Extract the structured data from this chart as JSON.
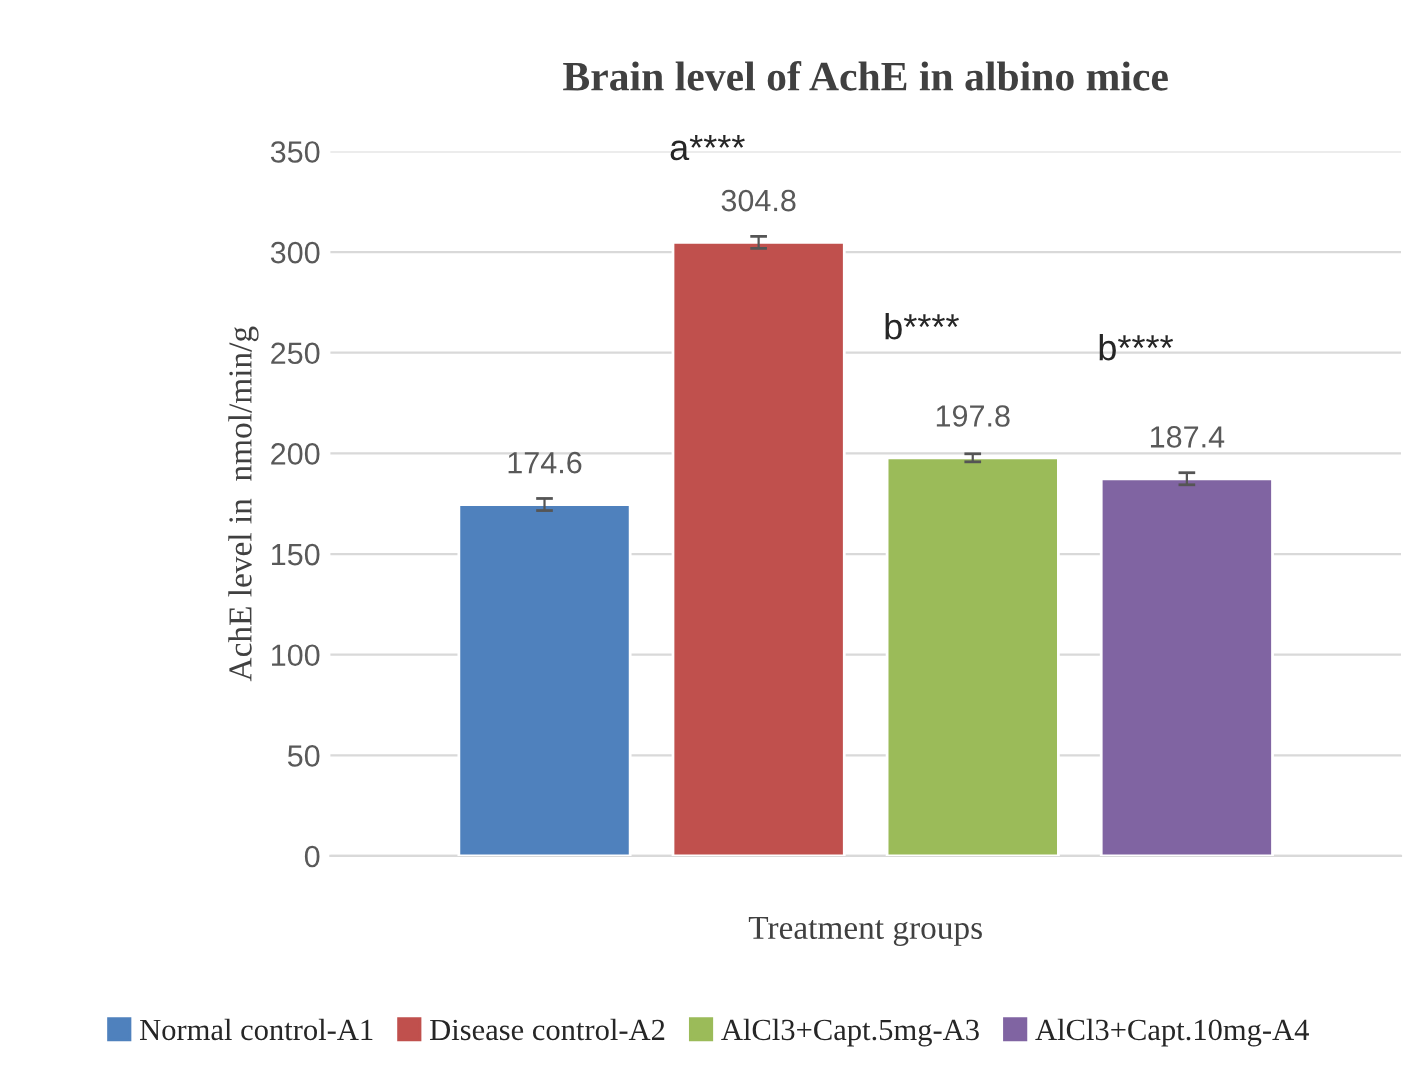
{
  "chart_data": {
    "type": "bar",
    "title": "Brain level of AchE in albino mice",
    "xlabel": "Treatment groups",
    "ylabel": "AchE level in  nmol/min/g",
    "categories": [
      null
    ],
    "series": [
      {
        "name": "Normal control-A1",
        "color": "#4f81bd",
        "values": [
          174.6
        ],
        "errors": [
          3
        ]
      },
      {
        "name": "Disease control-A2",
        "color": "#c0504d",
        "values": [
          304.8
        ],
        "errors": [
          3
        ]
      },
      {
        "name": "AlCl3+Capt.5mg-A3",
        "color": "#9bbb59",
        "values": [
          197.8
        ],
        "errors": [
          2
        ]
      },
      {
        "name": "AlCl3+Capt.10mg-A4",
        "color": "#8064a2",
        "values": [
          187.4
        ],
        "errors": [
          3
        ]
      }
    ],
    "annotations": [
      "a****",
      "b****",
      "b****"
    ],
    "data_labels": true,
    "ylim": [
      0,
      350
    ],
    "yticks": [
      0,
      50,
      100,
      150,
      200,
      250,
      300,
      350
    ],
    "grid": "y",
    "legend": "bottom"
  }
}
